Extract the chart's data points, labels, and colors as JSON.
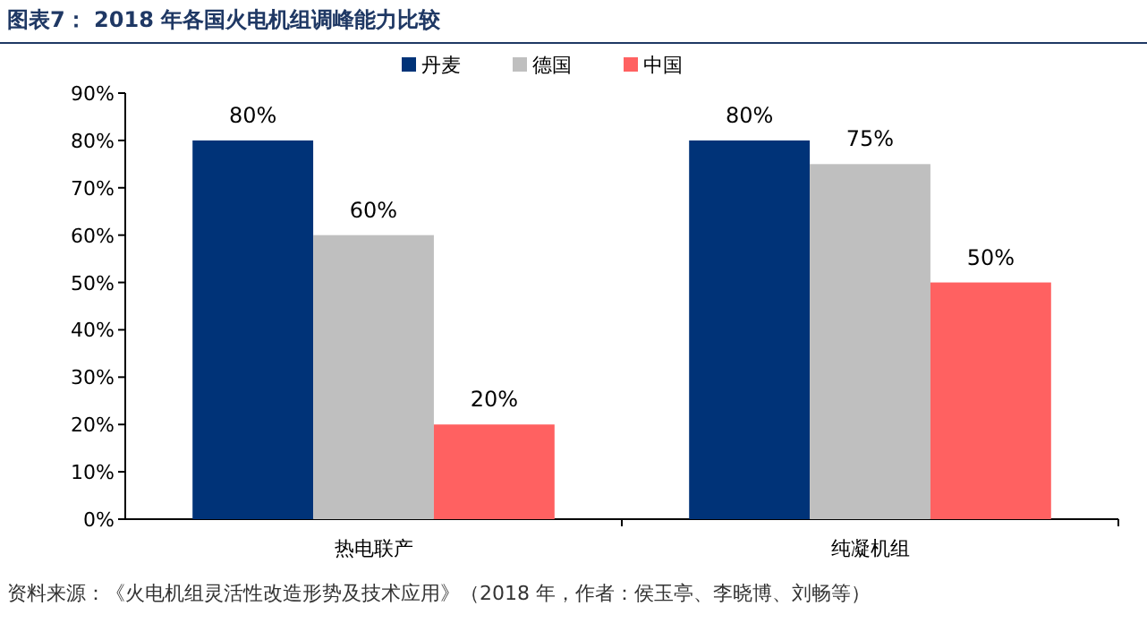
{
  "chart_data": {
    "type": "bar",
    "title": "图表7： 2018 年各国火电机组调峰能力比较",
    "categories": [
      "热电联产",
      "纯凝机组"
    ],
    "series": [
      {
        "name": "丹麦",
        "color": "#003378",
        "values": [
          80,
          80
        ],
        "value_labels": [
          "80%",
          "80%"
        ]
      },
      {
        "name": "德国",
        "color": "#bfbfbf",
        "values": [
          60,
          75
        ],
        "value_labels": [
          "60%",
          "75%"
        ]
      },
      {
        "name": "中国",
        "color": "#ff6161",
        "values": [
          20,
          50
        ],
        "value_labels": [
          "20%",
          "50%"
        ]
      }
    ],
    "ylim": [
      0,
      90
    ],
    "yticks": [
      {
        "value": 0,
        "label": "0%"
      },
      {
        "value": 10,
        "label": "10%"
      },
      {
        "value": 20,
        "label": "20%"
      },
      {
        "value": 30,
        "label": "30%"
      },
      {
        "value": 40,
        "label": "40%"
      },
      {
        "value": 50,
        "label": "50%"
      },
      {
        "value": 60,
        "label": "60%"
      },
      {
        "value": 70,
        "label": "70%"
      },
      {
        "value": 80,
        "label": "80%"
      },
      {
        "value": 90,
        "label": "90%"
      }
    ],
    "grid": false,
    "legend": "top",
    "annotations": [
      "资料来源：《火电机组灵活性改造形势及技术应用》（2018 年，作者：侯玉亭、李晓博、刘畅等）"
    ]
  }
}
